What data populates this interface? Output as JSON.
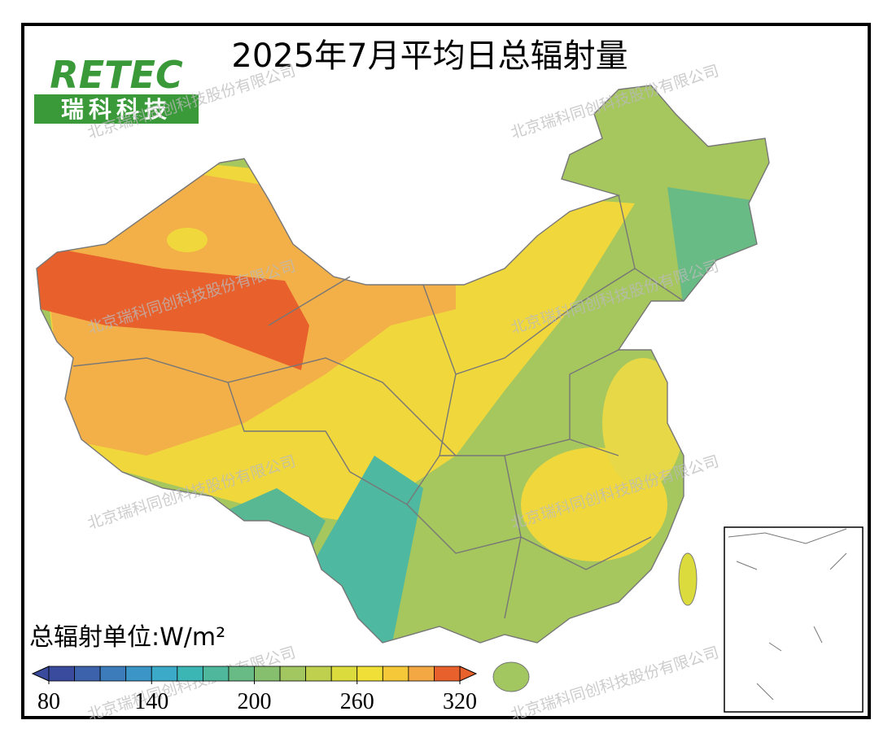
{
  "title": "2025年7月平均日总辐射量",
  "logo": {
    "name": "RETEC",
    "subtitle": "瑞科科技"
  },
  "watermark": "北京瑞科同创科技股份有限公司",
  "legend": {
    "label": "总辐射单位:W/m²",
    "lim": [
      80,
      320
    ],
    "ticks": [
      80,
      140,
      200,
      260,
      320
    ],
    "colors": [
      "#3a4a9c",
      "#3b62aa",
      "#3c7cba",
      "#3b95c6",
      "#3aaac8",
      "#3cb5b5",
      "#4fb89c",
      "#68bb84",
      "#86c06e",
      "#a2c660",
      "#bed04e",
      "#dcdb3e",
      "#f0df36",
      "#f5c83a",
      "#f3a844",
      "#e8602c"
    ]
  }
}
